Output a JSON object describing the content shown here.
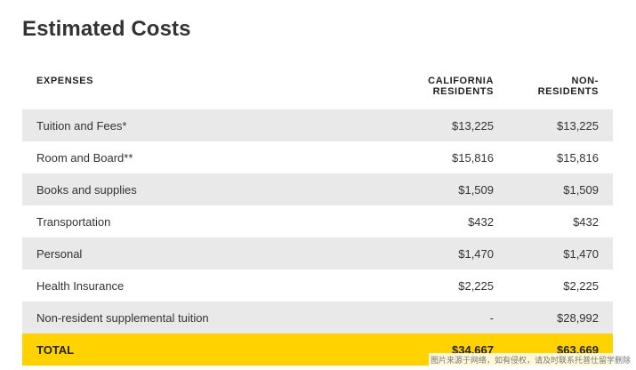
{
  "page": {
    "title": "Estimated Costs"
  },
  "table": {
    "headers": {
      "expenses": "EXPENSES",
      "california_line1": "CALIFORNIA",
      "california_line2": "RESIDENTS",
      "non_line1": "NON-",
      "non_line2": "RESIDENTS"
    },
    "rows": [
      {
        "label": "Tuition and Fees*",
        "california": "$13,225",
        "non_resident": "$13,225",
        "shaded": true
      },
      {
        "label": "Room and Board**",
        "california": "$15,816",
        "non_resident": "$15,816",
        "shaded": false
      },
      {
        "label": "Books and supplies",
        "california": "$1,509",
        "non_resident": "$1,509",
        "shaded": true
      },
      {
        "label": "Transportation",
        "california": "$432",
        "non_resident": "$432",
        "shaded": false
      },
      {
        "label": "Personal",
        "california": "$1,470",
        "non_resident": "$1,470",
        "shaded": true
      },
      {
        "label": "Health Insurance",
        "california": "$2,225",
        "non_resident": "$2,225",
        "shaded": false
      },
      {
        "label": "Non-resident supplemental tuition",
        "california": "-",
        "non_resident": "$28,992",
        "shaded": true
      }
    ],
    "total": {
      "label": "TOTAL",
      "california": "$34,667",
      "non_resident": "$63,669"
    }
  },
  "watermark": {
    "text": "图片来源于网络，如有侵权，请及时联系托普仕留学删除"
  },
  "colors": {
    "row_shade": "#e9e9e9",
    "total_highlight": "#ffd200",
    "title_text": "#333333"
  }
}
